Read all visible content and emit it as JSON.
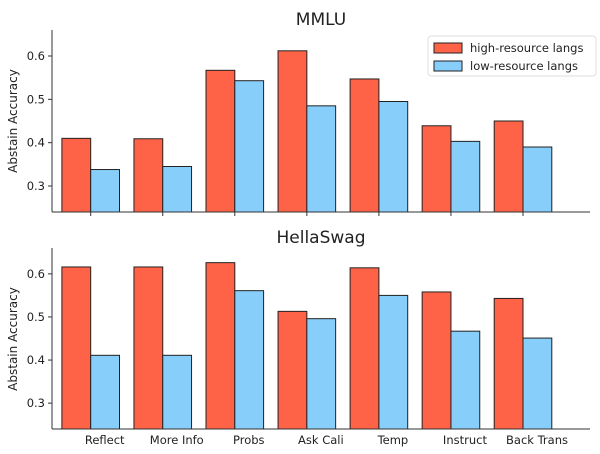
{
  "colors": {
    "high": "#FF6347",
    "low": "#87CEFA",
    "edge": "#222222"
  },
  "legend": {
    "placement": "top-right",
    "entries": [
      "high-resource langs",
      "low-resource langs"
    ]
  },
  "chart_data": [
    {
      "type": "bar",
      "title": "MMLU",
      "ylabel": "Abstain Accuracy",
      "xlabel": "",
      "categories": [
        "Reflect",
        "More Info",
        "Probs",
        "Ask Cali",
        "Temp",
        "Instruct",
        "Back Trans"
      ],
      "show_xtick_labels": false,
      "ylim": [
        0.24,
        0.66
      ],
      "yticks": [
        "0.3",
        "0.4",
        "0.5",
        "0.6"
      ],
      "grid": false,
      "series": [
        {
          "name": "high-resource langs",
          "values": [
            0.41,
            0.409,
            0.567,
            0.612,
            0.547,
            0.439,
            0.45
          ]
        },
        {
          "name": "low-resource langs",
          "values": [
            0.338,
            0.345,
            0.543,
            0.485,
            0.495,
            0.403,
            0.39
          ]
        }
      ]
    },
    {
      "type": "bar",
      "title": "HellaSwag",
      "ylabel": "Abstain Accuracy",
      "xlabel": "",
      "categories": [
        "Reflect",
        "More Info",
        "Probs",
        "Ask Cali",
        "Temp",
        "Instruct",
        "Back Trans"
      ],
      "show_xtick_labels": true,
      "ylim": [
        0.24,
        0.66
      ],
      "yticks": [
        "0.3",
        "0.4",
        "0.5",
        "0.6"
      ],
      "grid": false,
      "series": [
        {
          "name": "high-resource langs",
          "values": [
            0.616,
            0.616,
            0.626,
            0.513,
            0.614,
            0.558,
            0.543
          ]
        },
        {
          "name": "low-resource langs",
          "values": [
            0.411,
            0.411,
            0.561,
            0.496,
            0.55,
            0.467,
            0.451
          ]
        }
      ]
    }
  ]
}
